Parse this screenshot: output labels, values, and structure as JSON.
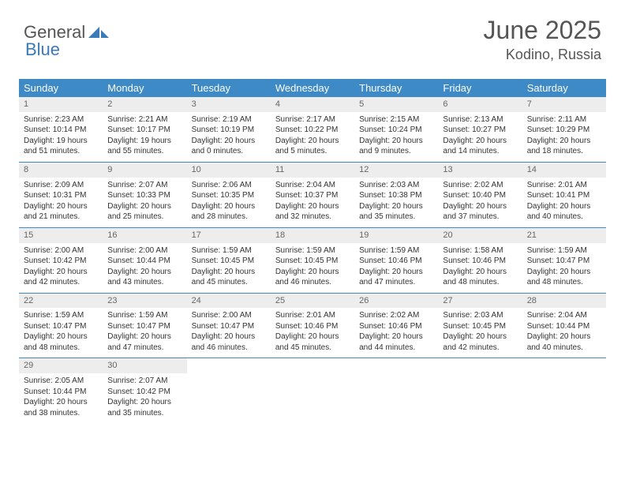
{
  "brand": {
    "word1": "General",
    "word2": "Blue"
  },
  "title": "June 2025",
  "location": "Kodino, Russia",
  "colors": {
    "header_bg": "#3d8ac7",
    "header_text": "#ffffff",
    "daynum_bg": "#ededed",
    "title_color": "#555555",
    "logo_color": "#3a7ab8",
    "border": "#3d8ac7"
  },
  "day_names": [
    "Sunday",
    "Monday",
    "Tuesday",
    "Wednesday",
    "Thursday",
    "Friday",
    "Saturday"
  ],
  "weeks": [
    [
      {
        "n": "1",
        "sr": "2:23 AM",
        "ss": "10:14 PM",
        "dl": "19 hours and 51 minutes."
      },
      {
        "n": "2",
        "sr": "2:21 AM",
        "ss": "10:17 PM",
        "dl": "19 hours and 55 minutes."
      },
      {
        "n": "3",
        "sr": "2:19 AM",
        "ss": "10:19 PM",
        "dl": "20 hours and 0 minutes."
      },
      {
        "n": "4",
        "sr": "2:17 AM",
        "ss": "10:22 PM",
        "dl": "20 hours and 5 minutes."
      },
      {
        "n": "5",
        "sr": "2:15 AM",
        "ss": "10:24 PM",
        "dl": "20 hours and 9 minutes."
      },
      {
        "n": "6",
        "sr": "2:13 AM",
        "ss": "10:27 PM",
        "dl": "20 hours and 14 minutes."
      },
      {
        "n": "7",
        "sr": "2:11 AM",
        "ss": "10:29 PM",
        "dl": "20 hours and 18 minutes."
      }
    ],
    [
      {
        "n": "8",
        "sr": "2:09 AM",
        "ss": "10:31 PM",
        "dl": "20 hours and 21 minutes."
      },
      {
        "n": "9",
        "sr": "2:07 AM",
        "ss": "10:33 PM",
        "dl": "20 hours and 25 minutes."
      },
      {
        "n": "10",
        "sr": "2:06 AM",
        "ss": "10:35 PM",
        "dl": "20 hours and 28 minutes."
      },
      {
        "n": "11",
        "sr": "2:04 AM",
        "ss": "10:37 PM",
        "dl": "20 hours and 32 minutes."
      },
      {
        "n": "12",
        "sr": "2:03 AM",
        "ss": "10:38 PM",
        "dl": "20 hours and 35 minutes."
      },
      {
        "n": "13",
        "sr": "2:02 AM",
        "ss": "10:40 PM",
        "dl": "20 hours and 37 minutes."
      },
      {
        "n": "14",
        "sr": "2:01 AM",
        "ss": "10:41 PM",
        "dl": "20 hours and 40 minutes."
      }
    ],
    [
      {
        "n": "15",
        "sr": "2:00 AM",
        "ss": "10:42 PM",
        "dl": "20 hours and 42 minutes."
      },
      {
        "n": "16",
        "sr": "2:00 AM",
        "ss": "10:44 PM",
        "dl": "20 hours and 43 minutes."
      },
      {
        "n": "17",
        "sr": "1:59 AM",
        "ss": "10:45 PM",
        "dl": "20 hours and 45 minutes."
      },
      {
        "n": "18",
        "sr": "1:59 AM",
        "ss": "10:45 PM",
        "dl": "20 hours and 46 minutes."
      },
      {
        "n": "19",
        "sr": "1:59 AM",
        "ss": "10:46 PM",
        "dl": "20 hours and 47 minutes."
      },
      {
        "n": "20",
        "sr": "1:58 AM",
        "ss": "10:46 PM",
        "dl": "20 hours and 48 minutes."
      },
      {
        "n": "21",
        "sr": "1:59 AM",
        "ss": "10:47 PM",
        "dl": "20 hours and 48 minutes."
      }
    ],
    [
      {
        "n": "22",
        "sr": "1:59 AM",
        "ss": "10:47 PM",
        "dl": "20 hours and 48 minutes."
      },
      {
        "n": "23",
        "sr": "1:59 AM",
        "ss": "10:47 PM",
        "dl": "20 hours and 47 minutes."
      },
      {
        "n": "24",
        "sr": "2:00 AM",
        "ss": "10:47 PM",
        "dl": "20 hours and 46 minutes."
      },
      {
        "n": "25",
        "sr": "2:01 AM",
        "ss": "10:46 PM",
        "dl": "20 hours and 45 minutes."
      },
      {
        "n": "26",
        "sr": "2:02 AM",
        "ss": "10:46 PM",
        "dl": "20 hours and 44 minutes."
      },
      {
        "n": "27",
        "sr": "2:03 AM",
        "ss": "10:45 PM",
        "dl": "20 hours and 42 minutes."
      },
      {
        "n": "28",
        "sr": "2:04 AM",
        "ss": "10:44 PM",
        "dl": "20 hours and 40 minutes."
      }
    ],
    [
      {
        "n": "29",
        "sr": "2:05 AM",
        "ss": "10:44 PM",
        "dl": "20 hours and 38 minutes."
      },
      {
        "n": "30",
        "sr": "2:07 AM",
        "ss": "10:42 PM",
        "dl": "20 hours and 35 minutes."
      },
      null,
      null,
      null,
      null,
      null
    ]
  ],
  "labels": {
    "sunrise_prefix": "Sunrise: ",
    "sunset_prefix": "Sunset: ",
    "daylight_prefix": "Daylight: "
  }
}
